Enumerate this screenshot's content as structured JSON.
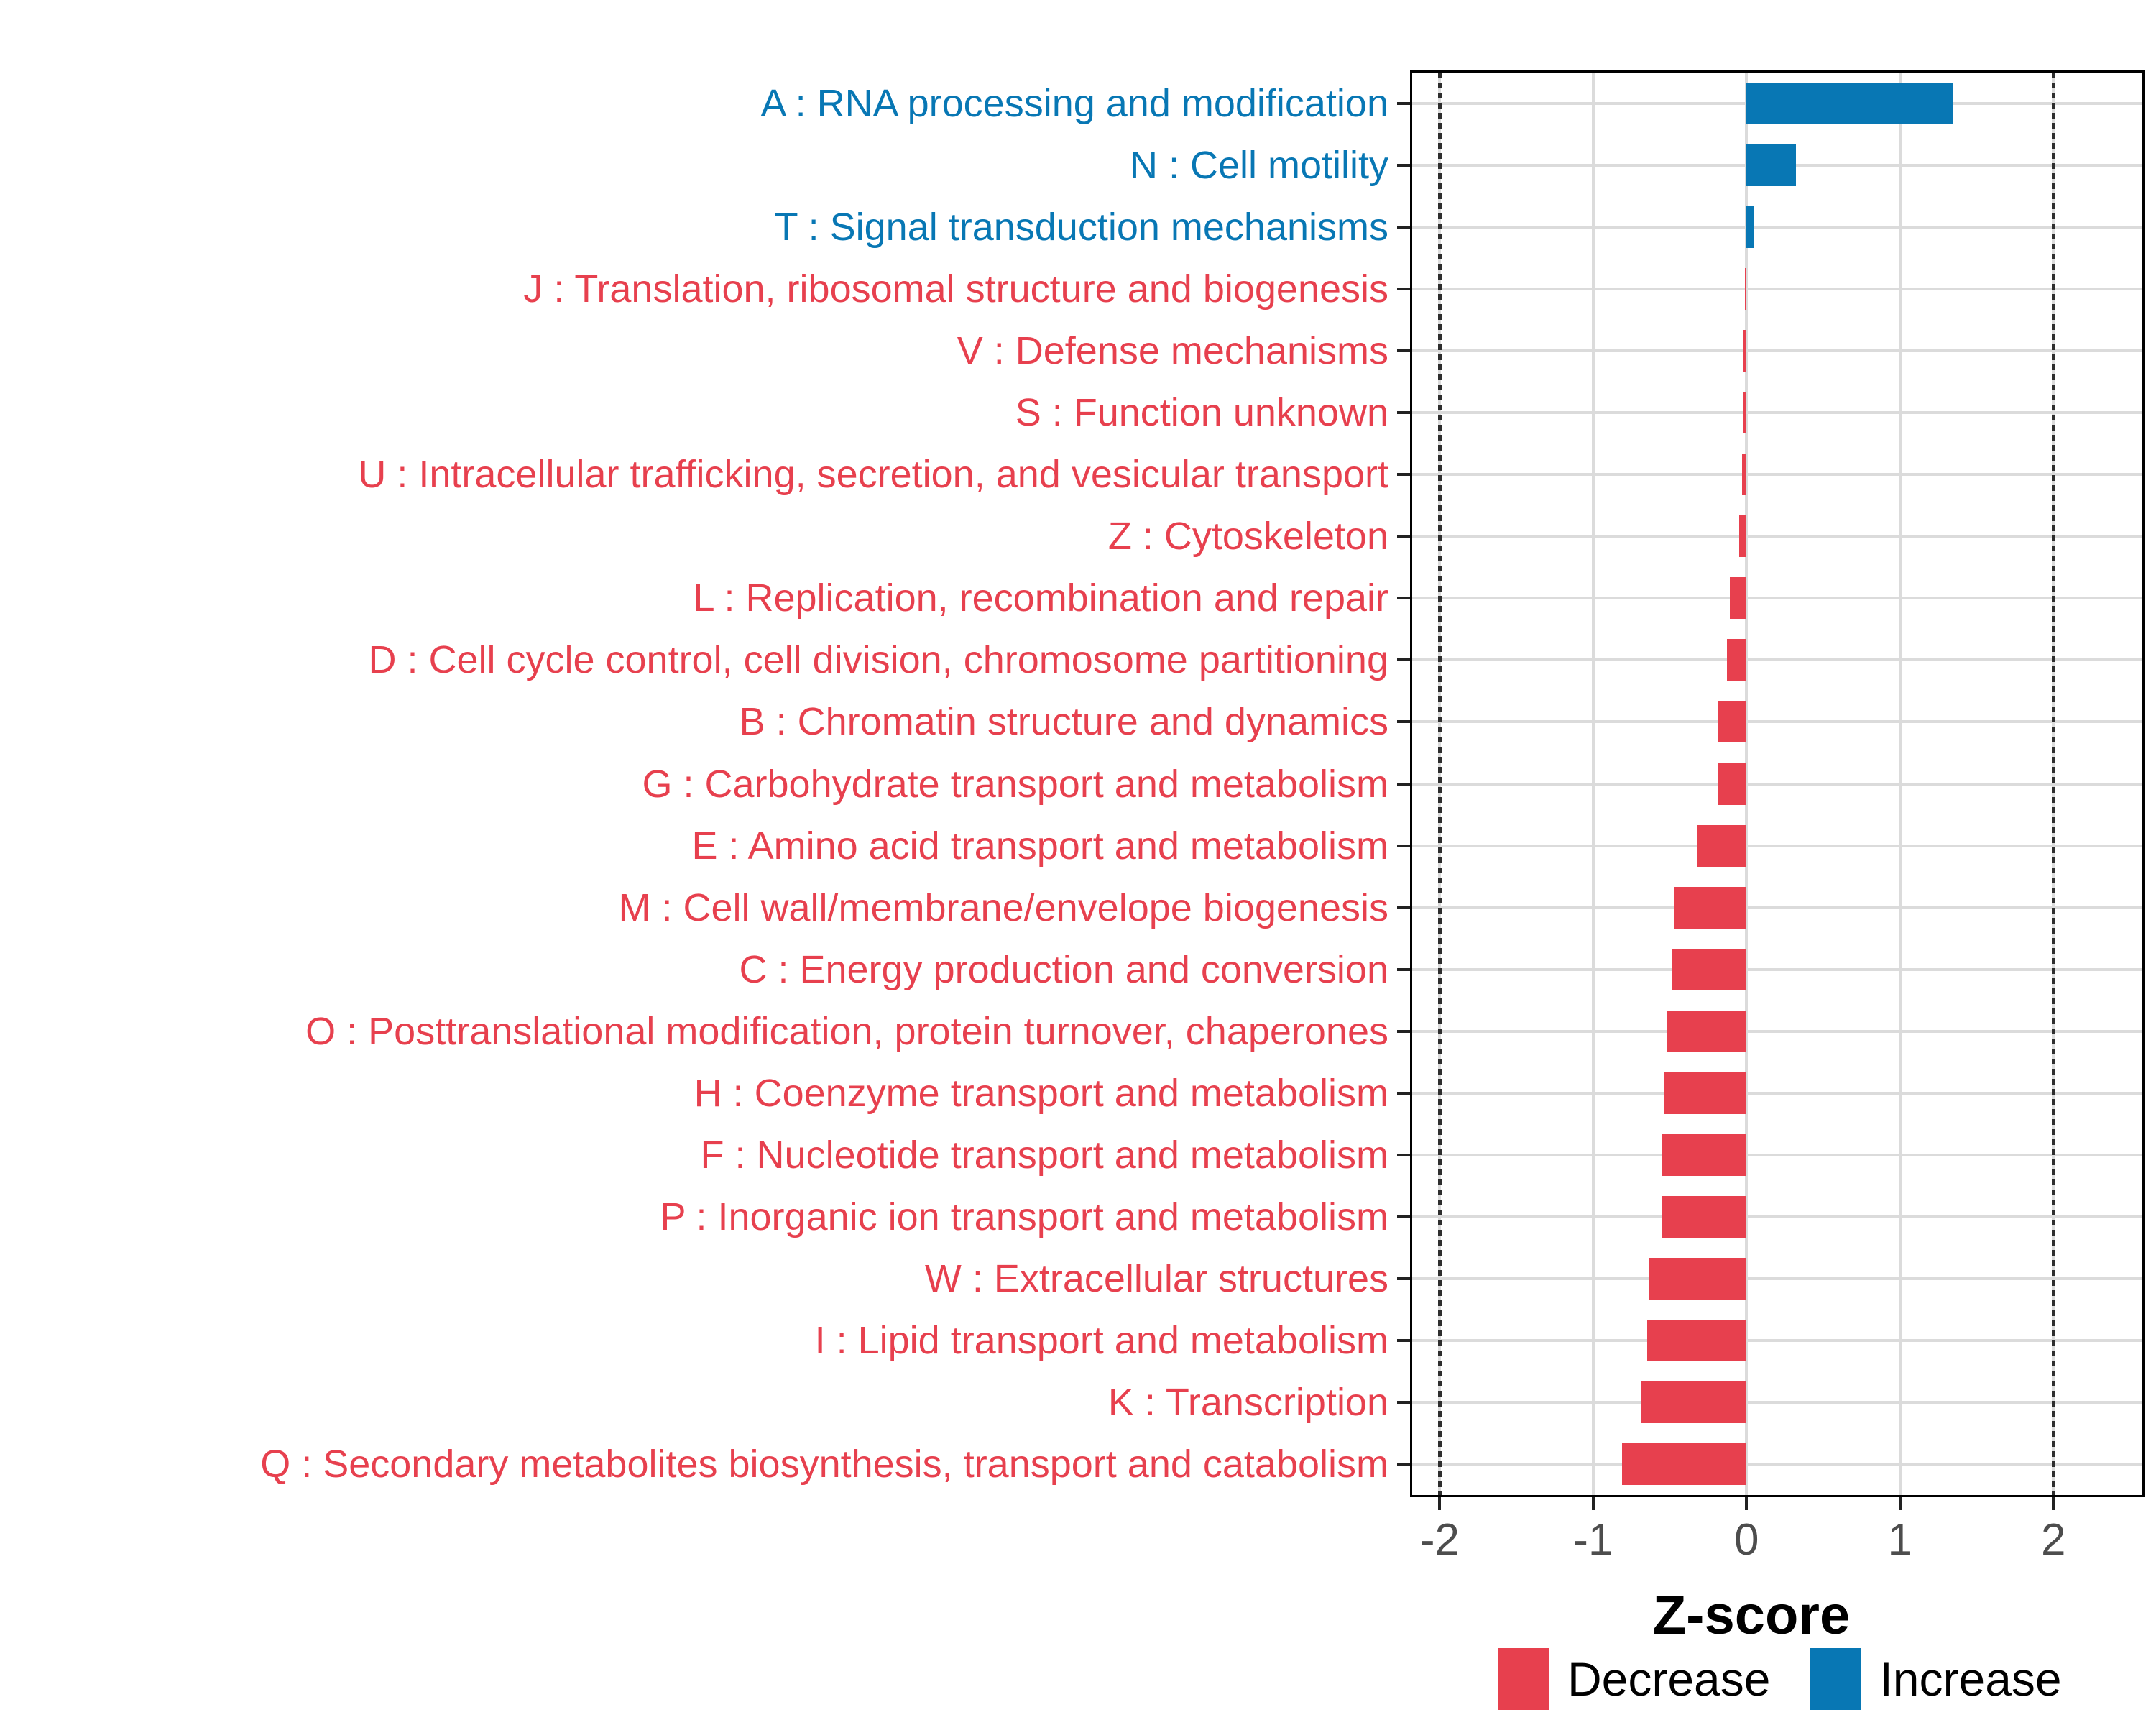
{
  "chart_data": {
    "type": "bar",
    "orientation": "horizontal",
    "title": "",
    "xlabel": "Z-score",
    "ylabel": "",
    "xlim": [
      -2.18,
      2.58
    ],
    "x_ticks": [
      -2,
      -1,
      0,
      1,
      2
    ],
    "reference_lines_dotted": [
      -2,
      2
    ],
    "grid": true,
    "legend_position": "bottom",
    "colors": {
      "decrease": "#e7404e",
      "increase": "#0877b4",
      "gridline": "#dbdbdb",
      "axis_text": "#4d4d4d",
      "axis_line": "#000000",
      "ref_line": "#2e2e2e"
    },
    "legend": [
      {
        "label": "Decrease",
        "color": "#e7404e"
      },
      {
        "label": "Increase",
        "color": "#0877b4"
      }
    ],
    "categories": [
      {
        "code": "A",
        "label": "A : RNA processing and modification",
        "value": 1.35,
        "direction": "increase"
      },
      {
        "code": "N",
        "label": "N : Cell motility",
        "value": 0.32,
        "direction": "increase"
      },
      {
        "code": "T",
        "label": "T : Signal transduction mechanisms",
        "value": 0.05,
        "direction": "increase"
      },
      {
        "code": "J",
        "label": "J : Translation, ribosomal structure and biogenesis",
        "value": -0.01,
        "direction": "decrease"
      },
      {
        "code": "V",
        "label": "V : Defense mechanisms",
        "value": -0.02,
        "direction": "decrease"
      },
      {
        "code": "S",
        "label": "S : Function unknown",
        "value": -0.02,
        "direction": "decrease"
      },
      {
        "code": "U",
        "label": "U : Intracellular trafficking, secretion, and vesicular transport",
        "value": -0.03,
        "direction": "decrease"
      },
      {
        "code": "Z",
        "label": "Z : Cytoskeleton",
        "value": -0.05,
        "direction": "decrease"
      },
      {
        "code": "L",
        "label": "L : Replication, recombination and repair",
        "value": -0.11,
        "direction": "decrease"
      },
      {
        "code": "D",
        "label": "D : Cell cycle control, cell division, chromosome partitioning",
        "value": -0.13,
        "direction": "decrease"
      },
      {
        "code": "B",
        "label": "B : Chromatin structure and dynamics",
        "value": -0.19,
        "direction": "decrease"
      },
      {
        "code": "G",
        "label": "G : Carbohydrate transport and metabolism",
        "value": -0.19,
        "direction": "decrease"
      },
      {
        "code": "E",
        "label": "E : Amino acid transport and metabolism",
        "value": -0.32,
        "direction": "decrease"
      },
      {
        "code": "M",
        "label": "M : Cell wall/membrane/envelope biogenesis",
        "value": -0.47,
        "direction": "decrease"
      },
      {
        "code": "C",
        "label": "C : Energy production and conversion",
        "value": -0.49,
        "direction": "decrease"
      },
      {
        "code": "O",
        "label": "O : Posttranslational modification, protein turnover, chaperones",
        "value": -0.52,
        "direction": "decrease"
      },
      {
        "code": "H",
        "label": "H : Coenzyme transport and metabolism",
        "value": -0.54,
        "direction": "decrease"
      },
      {
        "code": "F",
        "label": "F : Nucleotide transport and metabolism",
        "value": -0.55,
        "direction": "decrease"
      },
      {
        "code": "P",
        "label": "P : Inorganic ion transport and metabolism",
        "value": -0.55,
        "direction": "decrease"
      },
      {
        "code": "W",
        "label": "W : Extracellular structures",
        "value": -0.64,
        "direction": "decrease"
      },
      {
        "code": "I",
        "label": "I : Lipid transport and metabolism",
        "value": -0.65,
        "direction": "decrease"
      },
      {
        "code": "K",
        "label": "K : Transcription",
        "value": -0.69,
        "direction": "decrease"
      },
      {
        "code": "Q",
        "label": "Q : Secondary metabolites biosynthesis, transport and catabolism",
        "value": -0.81,
        "direction": "decrease"
      }
    ]
  }
}
